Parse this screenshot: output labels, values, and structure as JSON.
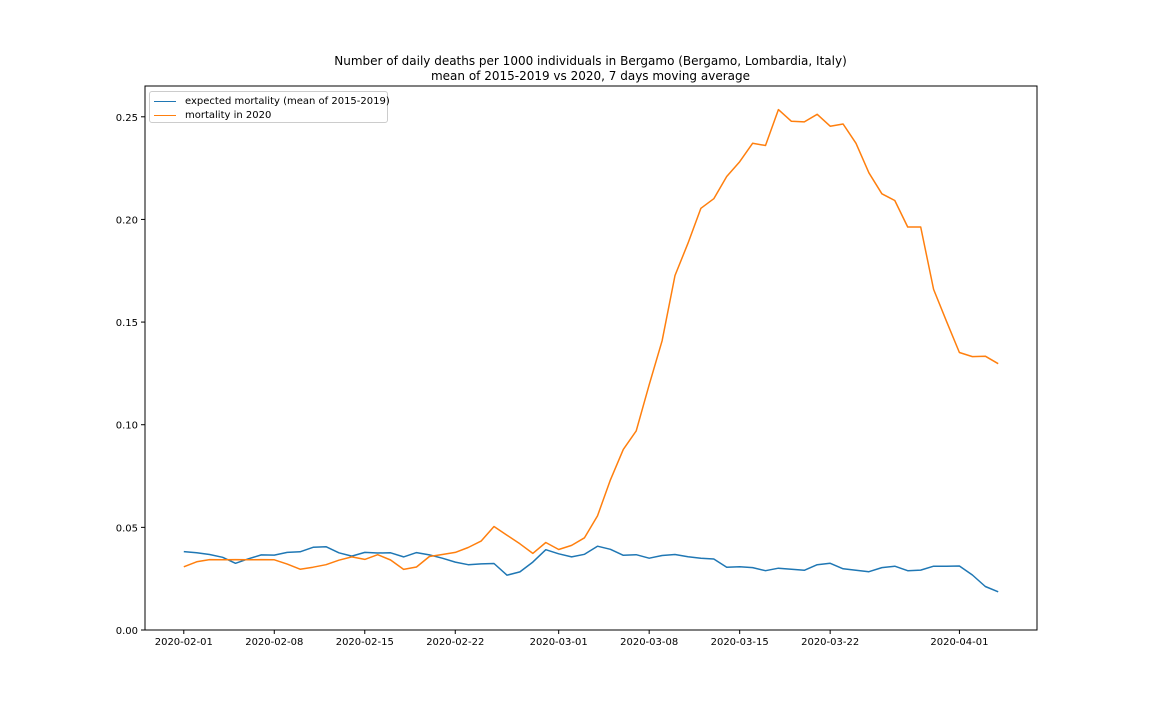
{
  "chart_data": {
    "type": "line",
    "title": "Number of daily deaths per 1000 individuals in Bergamo (Bergamo, Lombardia, Italy)",
    "subtitle": "mean of 2015-2019 vs 2020, 7 days moving average",
    "xlabel": "",
    "ylabel": "",
    "x_start": "2020-02-01",
    "x_end": "2020-04-04",
    "x_ticks": [
      "2020-02-01",
      "2020-02-08",
      "2020-02-15",
      "2020-02-22",
      "2020-03-01",
      "2020-03-08",
      "2020-03-15",
      "2020-03-22",
      "2020-04-01"
    ],
    "y_ticks": [
      0.0,
      0.05,
      0.1,
      0.15,
      0.2,
      0.25
    ],
    "y_tick_labels": [
      "0.00",
      "0.05",
      "0.10",
      "0.15",
      "0.20",
      "0.25"
    ],
    "xlim": [
      "2020-01-29",
      "2020-04-07"
    ],
    "ylim": [
      0,
      0.265
    ],
    "grid": false,
    "legend_position": "top-left",
    "series": [
      {
        "name": "expected mortality (mean of 2015-2019)",
        "color": "#1f77b4",
        "values": [
          0.0382,
          0.0376,
          0.0368,
          0.0354,
          0.0325,
          0.0347,
          0.0366,
          0.0365,
          0.0378,
          0.0381,
          0.0403,
          0.0406,
          0.0376,
          0.036,
          0.0378,
          0.0375,
          0.0376,
          0.0356,
          0.0377,
          0.0366,
          0.035,
          0.0331,
          0.0318,
          0.0322,
          0.0324,
          0.0267,
          0.0283,
          0.0331,
          0.0391,
          0.0371,
          0.0356,
          0.0369,
          0.0408,
          0.0393,
          0.0364,
          0.0367,
          0.035,
          0.0363,
          0.0368,
          0.0357,
          0.035,
          0.0346,
          0.0306,
          0.0308,
          0.0304,
          0.0289,
          0.0301,
          0.0296,
          0.0291,
          0.0318,
          0.0325,
          0.0298,
          0.0291,
          0.0284,
          0.0304,
          0.0311,
          0.0289,
          0.0292,
          0.0311,
          0.0311,
          0.0312,
          0.0268,
          0.0212,
          0.0186
        ]
      },
      {
        "name": "mortality in 2020",
        "color": "#ff7f0e",
        "values": [
          0.0308,
          0.0332,
          0.0343,
          0.0342,
          0.0343,
          0.0342,
          0.0343,
          0.0342,
          0.0321,
          0.0296,
          0.0306,
          0.0318,
          0.034,
          0.0356,
          0.0344,
          0.0367,
          0.0341,
          0.0295,
          0.0307,
          0.0358,
          0.0368,
          0.0378,
          0.0402,
          0.0433,
          0.0504,
          0.0462,
          0.042,
          0.0373,
          0.0426,
          0.0392,
          0.0412,
          0.0449,
          0.0556,
          0.0731,
          0.088,
          0.097,
          0.1195,
          0.1409,
          0.1727,
          0.1884,
          0.2054,
          0.2101,
          0.2209,
          0.2281,
          0.2371,
          0.236,
          0.2535,
          0.2478,
          0.2475,
          0.2512,
          0.2454,
          0.2465,
          0.2371,
          0.2227,
          0.2125,
          0.2092,
          0.1963,
          0.1963,
          0.1659,
          0.1504,
          0.1352,
          0.1332,
          0.1334,
          0.1297
        ]
      }
    ]
  }
}
